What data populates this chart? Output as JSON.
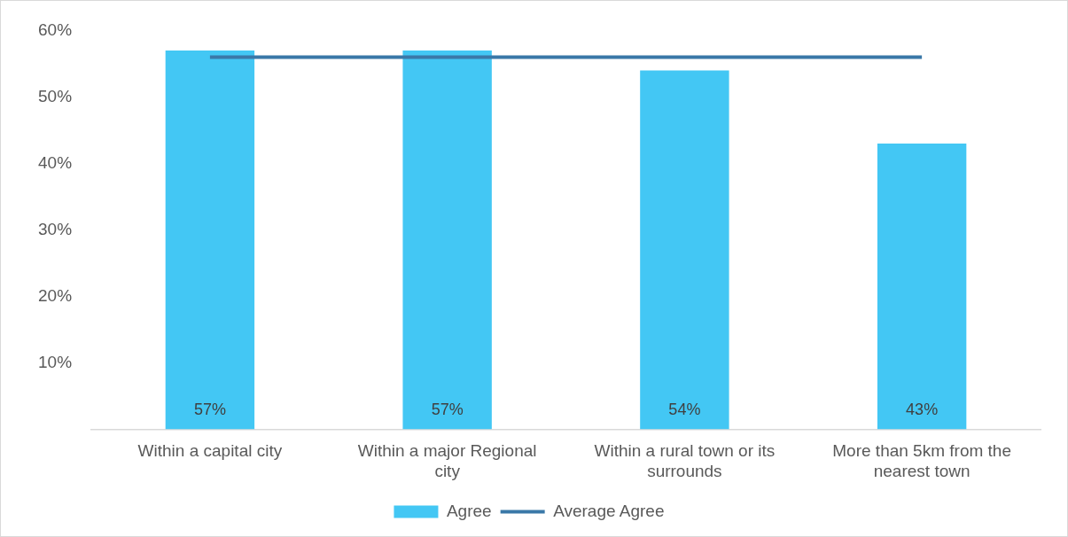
{
  "chart_data": {
    "type": "bar",
    "categories": [
      "Within a capital city",
      "Within a major Regional city",
      "Within a rural town or its surrounds",
      "More than 5km from the nearest town"
    ],
    "series": [
      {
        "name": "Agree",
        "color": "#43c7f4",
        "values": [
          57,
          57,
          54,
          43
        ]
      },
      {
        "name": "Average Agree",
        "type": "line",
        "color": "#3a78a8",
        "values": [
          56,
          56,
          56,
          56
        ]
      }
    ],
    "ylim": [
      0,
      60
    ],
    "yticks": [
      {
        "value": 0,
        "label": null
      },
      {
        "value": 10,
        "label": "10%"
      },
      {
        "value": 20,
        "label": "20%"
      },
      {
        "value": 30,
        "label": "30%"
      },
      {
        "value": 40,
        "label": "40%"
      },
      {
        "value": 50,
        "label": "50%"
      },
      {
        "value": 60,
        "label": "60%"
      }
    ],
    "value_labels": [
      "57%",
      "57%",
      "54%",
      "43%"
    ],
    "grid": false,
    "legend": "bottom",
    "marker": "none"
  }
}
